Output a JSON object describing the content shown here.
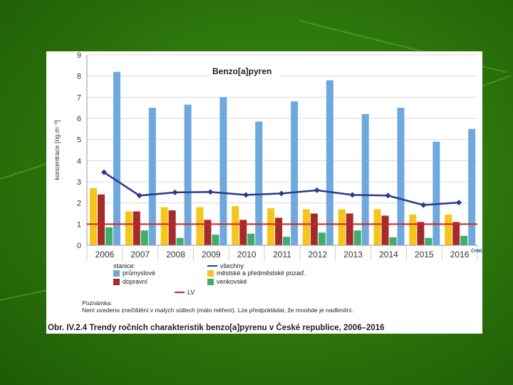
{
  "background_colors": {
    "green_dark": "#1f5a06",
    "green_mid": "#3f8f14"
  },
  "chart_data": {
    "type": "bar",
    "title": "Benzo[a]pyren",
    "ylabel": "koncentrace [ng.m⁻³]",
    "xlabel": "",
    "ylim": [
      0,
      9
    ],
    "yticks": [
      "0",
      "1",
      "2",
      "3",
      "4",
      "5",
      "6",
      "7",
      "8",
      "9"
    ],
    "categories": [
      "2006",
      "2007",
      "2008",
      "2009",
      "2010",
      "2011",
      "2012",
      "2013",
      "2014",
      "2015",
      "2016"
    ],
    "series": [
      {
        "name": "průmyslové",
        "kind": "bar",
        "color": "#6fa8dc",
        "values": [
          8.2,
          6.5,
          6.65,
          7.0,
          5.85,
          6.8,
          7.8,
          6.2,
          6.5,
          4.9,
          5.5
        ]
      },
      {
        "name": "městské a předměstské pozaď.",
        "kind": "bar",
        "color": "#f5c518",
        "values": [
          2.7,
          1.6,
          1.8,
          1.8,
          1.85,
          1.75,
          1.7,
          1.7,
          1.7,
          1.45,
          1.45
        ]
      },
      {
        "name": "dopravní",
        "kind": "bar",
        "color": "#a52a2a",
        "values": [
          2.4,
          1.6,
          1.65,
          1.2,
          1.2,
          1.3,
          1.5,
          1.5,
          1.4,
          1.1,
          1.1
        ]
      },
      {
        "name": "venkovské",
        "kind": "bar",
        "color": "#3fae6b",
        "values": [
          0.85,
          0.7,
          0.35,
          0.5,
          0.55,
          0.4,
          0.6,
          0.7,
          0.38,
          0.35,
          0.45
        ]
      },
      {
        "name": "všechny",
        "kind": "line",
        "color": "#2b3a8c",
        "values": [
          3.45,
          2.35,
          2.5,
          2.52,
          2.38,
          2.45,
          2.6,
          2.38,
          2.35,
          1.9,
          2.02
        ]
      }
    ],
    "reference_line": {
      "name": "LV",
      "value": 1,
      "color": "#d42020"
    }
  },
  "legend": {
    "title": "stanice:",
    "items": {
      "industrial": "průmyslové",
      "all": "všechny",
      "traffic": "dopravní",
      "urban": "městské a předměstské pozaď.",
      "rural": "venkovské",
      "lv": "LV"
    }
  },
  "note": {
    "heading": "Poznámka:",
    "text": "Není uvedeno znečištění v malých sídlech (málo měření). Lze předpokládat, že mnohde je nadlimitní."
  },
  "caption": "Obr. IV.2.4  Trendy ročních charakteristik benzo[a]pyrenu v České republice, 2006–2016",
  "logo_text": "ČHMÚ"
}
